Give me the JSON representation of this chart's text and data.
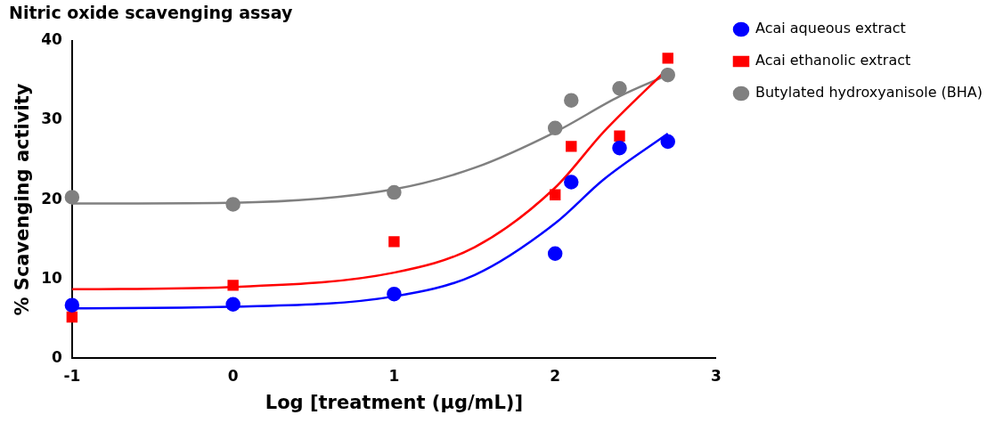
{
  "chart_data": {
    "type": "scatter",
    "title": "Nitric oxide scavenging assay",
    "xlabel": "Log [treatment (μg/mL)]",
    "ylabel": "% Scavenging activity",
    "xlim": [
      -1,
      3
    ],
    "xticks": [
      -1,
      0,
      1,
      2,
      3
    ],
    "ylim": [
      0,
      40
    ],
    "yticks": [
      0,
      10,
      20,
      30,
      40
    ],
    "grid": false,
    "legend": "right",
    "series": [
      {
        "name": "Acai aqueous extract",
        "marker": "circle",
        "color": "#0000ff",
        "x": [
          -1,
          0,
          1,
          2,
          2.1,
          2.4,
          2.7
        ],
        "values": [
          6.7,
          6.8,
          8.1,
          13.2,
          22.2,
          26.5,
          27.3
        ]
      },
      {
        "name": "Acai ethanolic extract",
        "marker": "square",
        "color": "#ff0000",
        "x": [
          -1,
          0,
          1,
          2,
          2.1,
          2.4,
          2.7
        ],
        "values": [
          5.2,
          9.2,
          14.7,
          20.6,
          26.7,
          28,
          37.8
        ]
      },
      {
        "name": "Butylated hydroxyanisole (BHA)",
        "marker": "circle",
        "color": "#808080",
        "x": [
          -1,
          0,
          1,
          2,
          2.1,
          2.4,
          2.7
        ],
        "values": [
          20.3,
          19.4,
          20.9,
          29,
          32.5,
          34,
          35.7
        ]
      },
      {
        "type": "line",
        "marker": "none",
        "color": "#0000ff",
        "x": [
          -1,
          0,
          1,
          1.5,
          2,
          2.3,
          2.7
        ],
        "values": [
          6.3,
          6.5,
          7.8,
          10.5,
          17,
          22.5,
          28.3
        ]
      },
      {
        "type": "line",
        "marker": "none",
        "color": "#ff0000",
        "x": [
          -1,
          0,
          1,
          1.5,
          2,
          2.3,
          2.7
        ],
        "values": [
          8.7,
          9,
          10.8,
          14,
          21.5,
          28.5,
          36.5
        ]
      },
      {
        "type": "line",
        "marker": "none",
        "color": "#808080",
        "x": [
          -1,
          0,
          1,
          1.5,
          2,
          2.4,
          2.7
        ],
        "values": [
          19.5,
          19.6,
          21.3,
          24,
          28.5,
          33,
          35.7
        ]
      }
    ]
  }
}
